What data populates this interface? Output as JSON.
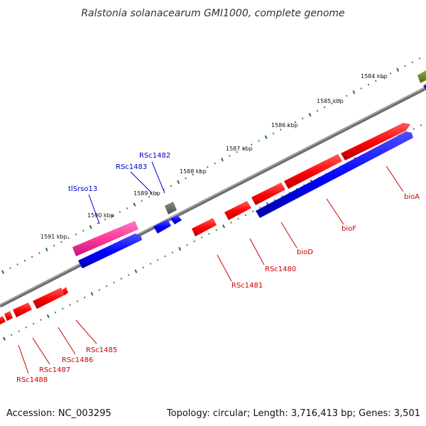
{
  "title": "Ralstonia solanacearum GMI1000, complete genome",
  "footer": {
    "accession": "Accession: NC_003295",
    "summary": "Topology: circular; Length: 3,716,413 bp; Genes: 3,501"
  },
  "scale_labels": [
    "1584 kbp",
    "1585 kbp",
    "1586 kbp",
    "1587 kbp",
    "1588 kbp",
    "1589 kbp",
    "1590 kbp",
    "1591 kbp"
  ],
  "gene_labels": {
    "bioA": "bioA",
    "bioF": "bioF",
    "bioD": "bioD",
    "RSc1480": "RSc1480",
    "RSc1481": "RSc1481",
    "RSc1482": "RSc1482",
    "RSc1483": "RSc1483",
    "tlSrso13": "tlSrso13",
    "RSc1485": "RSc1485",
    "RSc1486": "RSc1486",
    "RSc1487": "RSc1487",
    "RSc1488": "RSc1488"
  },
  "colors": {
    "forward_gene": "#ff0000",
    "reverse_gene": "#0000ff",
    "rna_gene": "#ff3399",
    "other_feature": "#666666",
    "olive_feature": "#6b8e23",
    "backbone": "#888888",
    "ticks": "#1a7a1a",
    "label_red": "#cc0000",
    "label_blue": "#0000cc"
  }
}
